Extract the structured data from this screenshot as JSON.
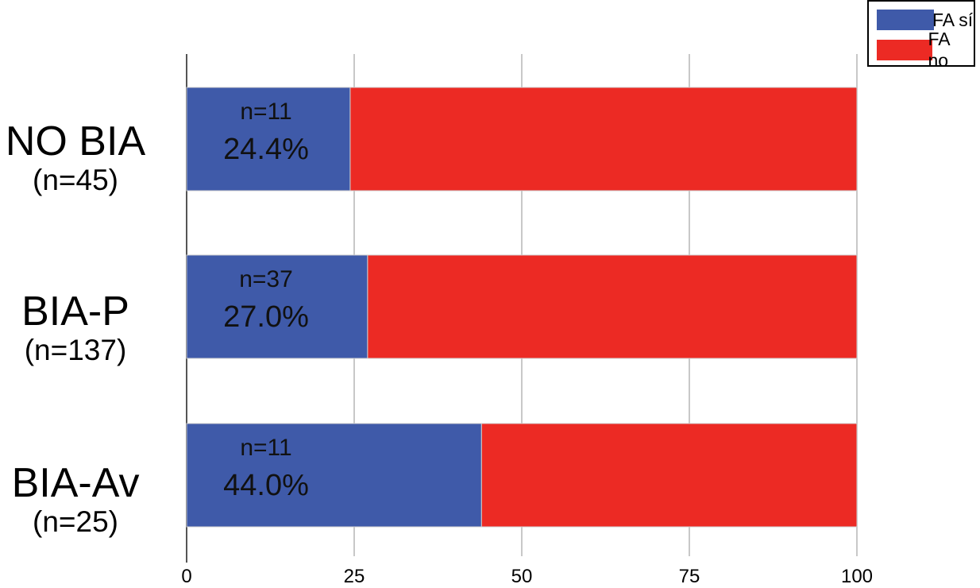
{
  "chart_data": {
    "type": "bar",
    "orientation": "horizontal",
    "stacked": true,
    "categories": [
      "NO BIA",
      "BIA-P",
      "BIA-Av"
    ],
    "category_counts": [
      "(n=45)",
      "(n=137)",
      "(n=25)"
    ],
    "series": [
      {
        "name": "FA sí",
        "color": "#3f5aa9",
        "values": [
          24.4,
          27.0,
          44.0
        ],
        "count_labels": [
          "n=11",
          "n=37",
          "n=11"
        ],
        "pct_labels": [
          "24.4%",
          "27.0%",
          "44.0%"
        ]
      },
      {
        "name": "FA no",
        "color": "#ec2a24",
        "values": [
          75.6,
          73.0,
          56.0
        ]
      }
    ],
    "xlim": [
      0,
      100
    ],
    "xticks": [
      "0",
      "25",
      "50",
      "75",
      "100"
    ],
    "grid": true,
    "legend_position": "top-right"
  }
}
